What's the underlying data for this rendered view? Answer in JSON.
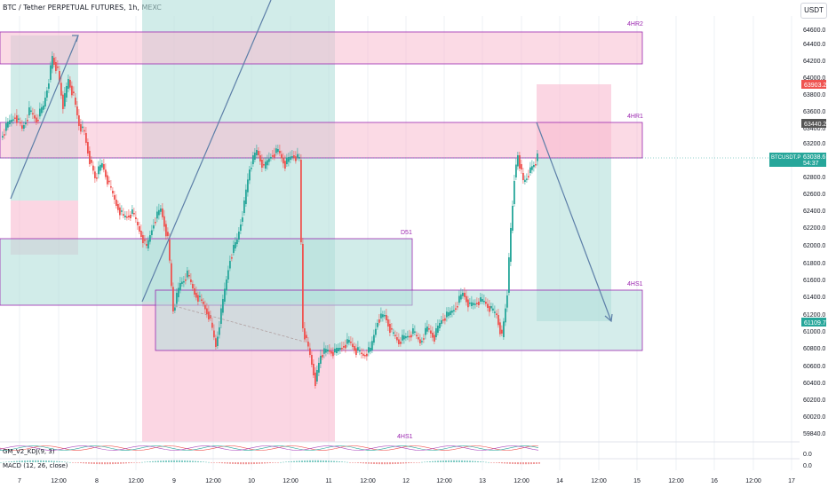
{
  "header": {
    "title": "BTC / Tether PERPETUAL FUTURES, 1h, MEXC",
    "currency_button": "USDT"
  },
  "indicators": {
    "kdj_label": "GM_V2_KDJ(9, 3)",
    "macd_label": "MACD (12, 26, close)",
    "kdj_value": "0.0",
    "macd_value": "0.0"
  },
  "price_axis": {
    "ticks": [
      "64600.0",
      "64400.0",
      "64200.0",
      "64000.0",
      "63800.0",
      "63600.0",
      "63400.0",
      "63200.0",
      "63000.0",
      "62800.0",
      "62600.0",
      "62400.0",
      "62200.0",
      "62000.0",
      "61800.0",
      "61600.0",
      "61400.0",
      "61200.0",
      "61000.0",
      "60800.0",
      "60600.0",
      "60400.0",
      "60200.0",
      "60020.0",
      "59840.0"
    ],
    "badge_upper": "63903.2",
    "badge_mid": "63440.2",
    "badge_symbol": "BTCUSDT.P",
    "badge_price": "63038.6",
    "badge_countdown": "54:37",
    "badge_lower": "61109.7"
  },
  "time_axis": {
    "labels": [
      "7",
      "12:00",
      "8",
      "12:00",
      "9",
      "12:00",
      "10",
      "12:00",
      "11",
      "12:00",
      "12",
      "12:00",
      "13",
      "12:00",
      "14",
      "12:00",
      "15",
      "12:00",
      "16",
      "12:00",
      "17"
    ]
  },
  "zones": {
    "4hr2": "4HR2",
    "4hr1": "4HR1",
    "d51": "D51",
    "4hs1_right": "4HS1",
    "4hs1_bottom": "4HS1"
  },
  "colors": {
    "bull": "#26a69a",
    "bear": "#ef5350",
    "zone_red": "#f8bbd0",
    "zone_green": "#b2dfdb",
    "zone_border": "#9c27b0",
    "grid": "#f0f3fa",
    "tool_line": "#5d7fa8"
  }
}
